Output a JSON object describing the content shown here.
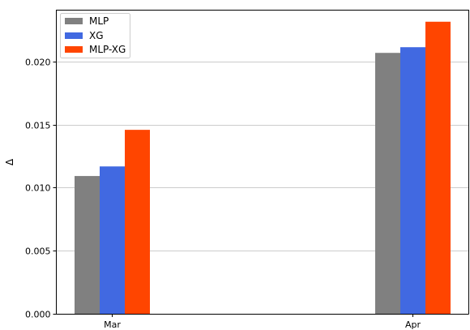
{
  "chart_data": {
    "type": "bar",
    "title": "",
    "xlabel": "",
    "ylabel": "Δ",
    "categories": [
      "Mar",
      "Apr"
    ],
    "series": [
      {
        "name": "MLP",
        "values": [
          0.01092,
          0.02068
        ],
        "color": "#808080"
      },
      {
        "name": "XG",
        "values": [
          0.01168,
          0.02113
        ],
        "color": "#4169e1"
      },
      {
        "name": "MLP-XG",
        "values": [
          0.01458,
          0.02315
        ],
        "color": "#ff4500"
      }
    ],
    "ylim": [
      0,
      0.0241
    ],
    "yticks": [
      "0.000",
      "0.005",
      "0.010",
      "0.015",
      "0.020"
    ],
    "ytick_values": [
      0,
      0.005,
      0.01,
      0.015,
      0.02
    ],
    "grid": "horizontal",
    "legend_position": "top-left"
  }
}
